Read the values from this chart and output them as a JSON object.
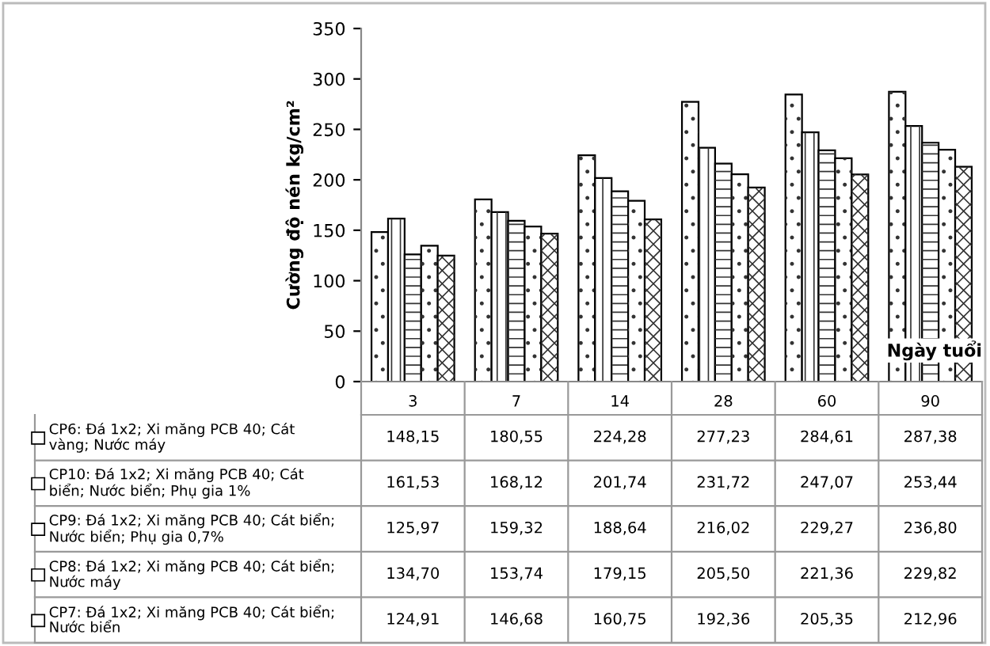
{
  "chart_data": {
    "type": "bar",
    "ylabel": "Cường độ nén kg/cm²",
    "xlabel": "Ngày tuổi",
    "categories": [
      "3",
      "7",
      "14",
      "28",
      "60",
      "90"
    ],
    "ylim": [
      0,
      350
    ],
    "yticks": [
      0,
      50,
      100,
      150,
      200,
      250,
      300,
      350
    ],
    "grid": false,
    "legend": "bottom",
    "series": [
      {
        "name": "CP6: Đá 1x2; Xi măng PCB 40; Cát\nvàng; Nước máy",
        "color": "#ffffff",
        "values": [
          148.15,
          180.55,
          224.28,
          277.23,
          284.61,
          287.38
        ],
        "value_labels": [
          "148,15",
          "180,55",
          "224,28",
          "277,23",
          "284,61",
          "287,38"
        ]
      },
      {
        "name": "CP10: Đá 1x2; Xi măng PCB 40; Cát\nbiển; Nước biển; Phụ gia 1%",
        "color": "#ffffff",
        "values": [
          161.53,
          168.12,
          201.74,
          231.72,
          247.07,
          253.44
        ],
        "value_labels": [
          "161,53",
          "168,12",
          "201,74",
          "231,72",
          "247,07",
          "253,44"
        ]
      },
      {
        "name": "CP9: Đá 1x2; Xi măng PCB 40; Cát biển;\nNước biển; Phụ gia 0,7%",
        "color": "#ffffff",
        "values": [
          125.97,
          159.32,
          188.64,
          216.02,
          229.27,
          236.8
        ],
        "value_labels": [
          "125,97",
          "159,32",
          "188,64",
          "216,02",
          "229,27",
          "236,80"
        ]
      },
      {
        "name": "CP8: Đá 1x2; Xi măng PCB 40; Cát biển;\nNước máy",
        "color": "#ffffff",
        "values": [
          134.7,
          153.74,
          179.15,
          205.5,
          221.36,
          229.82
        ],
        "value_labels": [
          "134,70",
          "153,74",
          "179,15",
          "205,50",
          "221,36",
          "229,82"
        ]
      },
      {
        "name": "CP7: Đá 1x2; Xi măng PCB 40; Cát biển;\nNước biển",
        "color": "#ffffff",
        "values": [
          124.91,
          146.68,
          160.75,
          192.36,
          205.35,
          212.96
        ],
        "value_labels": [
          "124,91",
          "146,68",
          "160,75",
          "192,36",
          "205,35",
          "212,96"
        ]
      }
    ]
  }
}
